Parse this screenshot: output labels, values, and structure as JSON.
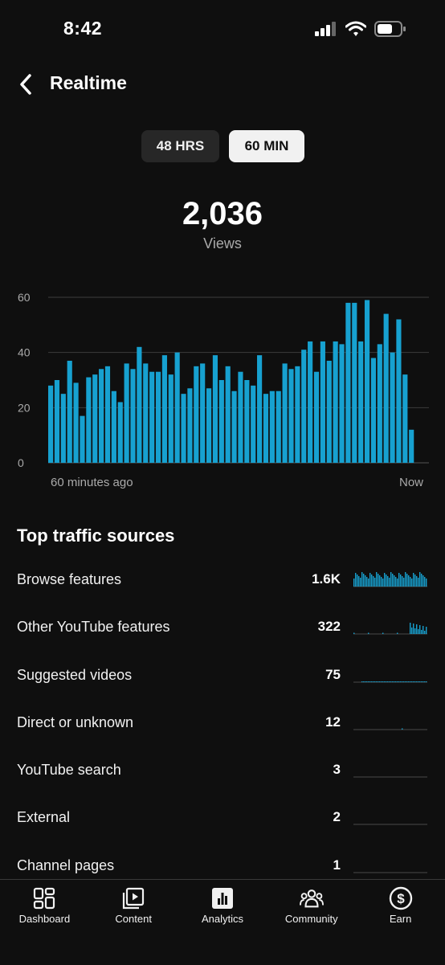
{
  "status_bar": {
    "time": "8:42",
    "icons": [
      "cellular-signal-icon",
      "wifi-icon",
      "battery-icon"
    ]
  },
  "header": {
    "title": "Realtime",
    "back_icon": "chevron-left-icon"
  },
  "range_toggle": {
    "options": [
      "48 HRS",
      "60 MIN"
    ],
    "selected": "60 MIN"
  },
  "summary": {
    "value": "2,036",
    "label": "Views"
  },
  "chart_data": {
    "type": "bar",
    "ylim": [
      0,
      60
    ],
    "yticks": [
      "0",
      "20",
      "40",
      "60"
    ],
    "x_start_label": "60 minutes ago",
    "x_end_label": "Now",
    "values": [
      28,
      30,
      25,
      37,
      29,
      17,
      31,
      32,
      34,
      35,
      26,
      22,
      36,
      34,
      42,
      36,
      33,
      33,
      39,
      32,
      40,
      25,
      27,
      35,
      36,
      27,
      39,
      30,
      35,
      26,
      33,
      30,
      28,
      39,
      25,
      26,
      26,
      36,
      34,
      35,
      41,
      44,
      33,
      44,
      37,
      44,
      43,
      58,
      58,
      44,
      59,
      38,
      43,
      54,
      40,
      52,
      32,
      12
    ],
    "bar_color": "#17a1d0",
    "grid": true
  },
  "traffic": {
    "title": "Top traffic sources",
    "rows": [
      {
        "name": "Browse features",
        "value": "1.6K",
        "level": 1.0
      },
      {
        "name": "Other YouTube features",
        "value": "322",
        "level": 0.2
      },
      {
        "name": "Suggested videos",
        "value": "75",
        "level": 0.05
      },
      {
        "name": "Direct or unknown",
        "value": "12",
        "level": 0.008
      },
      {
        "name": "YouTube search",
        "value": "3",
        "level": 0.002
      },
      {
        "name": "External",
        "value": "2",
        "level": 0.0013
      },
      {
        "name": "Channel pages",
        "value": "1",
        "level": 0.0007
      }
    ],
    "spark_color": "#17a1d0"
  },
  "bottom_nav": {
    "items": [
      {
        "label": "Dashboard",
        "icon": "dashboard-icon"
      },
      {
        "label": "Content",
        "icon": "content-icon"
      },
      {
        "label": "Analytics",
        "icon": "analytics-icon",
        "active": true
      },
      {
        "label": "Community",
        "icon": "community-icon"
      },
      {
        "label": "Earn",
        "icon": "earn-icon"
      }
    ]
  }
}
